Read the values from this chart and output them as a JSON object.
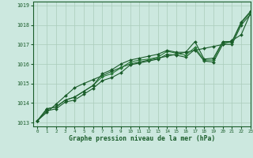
{
  "bg_color": "#cce8df",
  "grid_color": "#aaccbb",
  "line_color_dark": "#1a5c2a",
  "line_color_mid": "#2a7a3a",
  "xlabel": "Graphe pression niveau de la mer (hPa)",
  "xlim": [
    -0.5,
    23
  ],
  "ylim": [
    1012.8,
    1019.2
  ],
  "yticks": [
    1013,
    1014,
    1015,
    1016,
    1017,
    1018,
    1019
  ],
  "xticks": [
    0,
    1,
    2,
    3,
    4,
    5,
    6,
    7,
    8,
    9,
    10,
    11,
    12,
    13,
    14,
    15,
    16,
    17,
    18,
    19,
    20,
    21,
    22,
    23
  ],
  "series_top": [
    1013.1,
    1013.7,
    1013.8,
    1014.15,
    1014.3,
    1014.6,
    1014.9,
    1015.5,
    1015.7,
    1016.0,
    1016.2,
    1016.3,
    1016.4,
    1016.5,
    1016.7,
    1016.6,
    1016.6,
    1017.15,
    1016.25,
    1016.3,
    1017.15,
    1017.15,
    1018.15,
    1018.7
  ],
  "series_upper_mid": [
    1013.1,
    1013.7,
    1013.8,
    1014.15,
    1014.3,
    1014.6,
    1014.9,
    1015.35,
    1015.5,
    1015.8,
    1016.1,
    1016.2,
    1016.25,
    1016.35,
    1016.65,
    1016.55,
    1016.45,
    1016.85,
    1016.2,
    1016.2,
    1017.1,
    1017.1,
    1018.1,
    1018.65
  ],
  "series_lower_mid": [
    1013.1,
    1013.6,
    1013.7,
    1014.05,
    1014.15,
    1014.45,
    1014.75,
    1015.15,
    1015.3,
    1015.55,
    1015.95,
    1016.05,
    1016.15,
    1016.25,
    1016.5,
    1016.45,
    1016.35,
    1016.75,
    1016.15,
    1016.1,
    1017.0,
    1017.0,
    1018.0,
    1018.55
  ],
  "series_straight": [
    1013.1,
    1013.52,
    1013.94,
    1014.36,
    1014.78,
    1015.0,
    1015.2,
    1015.4,
    1015.62,
    1015.82,
    1016.0,
    1016.1,
    1016.2,
    1016.3,
    1016.4,
    1016.5,
    1016.6,
    1016.7,
    1016.8,
    1016.9,
    1017.0,
    1017.2,
    1017.5,
    1018.6
  ]
}
